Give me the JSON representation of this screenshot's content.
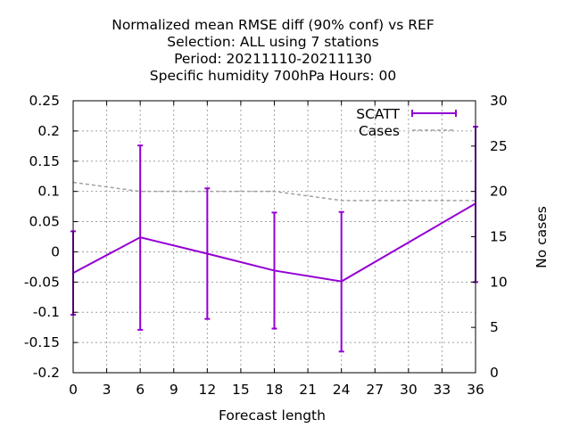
{
  "chart_data": {
    "type": "line",
    "title_lines": [
      "Normalized mean RMSE diff (90% conf) vs REF",
      "Selection: ALL using     7 stations",
      "Period: 20211110-20211130",
      "Specific humidity 700hPa   Hours:  00"
    ],
    "xlabel": "Forecast length",
    "ylabel": "",
    "y2label": "No cases",
    "xlim": [
      0,
      36
    ],
    "ylim": [
      -0.2,
      0.25
    ],
    "y2lim": [
      0,
      30
    ],
    "x_ticks": [
      "0",
      "3",
      "6",
      "9",
      "12",
      "15",
      "18",
      "21",
      "24",
      "27",
      "30",
      "33",
      "36"
    ],
    "y_ticks": [
      "0.25",
      "0.2",
      "0.15",
      "0.1",
      "0.05",
      "0",
      "-0.05",
      "-0.1",
      "-0.15",
      "-0.2"
    ],
    "y2_ticks": [
      "30",
      "25",
      "20",
      "15",
      "10",
      "5",
      "0"
    ],
    "grid": true,
    "legend_position": "top-right",
    "series": [
      {
        "name": "SCATT",
        "color": "#9400d3",
        "style": "line with errorbars",
        "x": [
          0,
          6,
          12,
          18,
          24,
          36
        ],
        "values": [
          -0.035,
          0.024,
          -0.003,
          -0.031,
          -0.049,
          0.08
        ],
        "err_low": [
          -0.104,
          -0.129,
          -0.111,
          -0.127,
          -0.165,
          -0.05
        ],
        "err_high": [
          0.034,
          0.176,
          0.105,
          0.065,
          0.066,
          0.207
        ]
      },
      {
        "name": "Cases",
        "color": "#a0a0a0",
        "style": "dashed",
        "axis": "y2",
        "x": [
          0,
          6,
          12,
          18,
          24,
          36
        ],
        "values": [
          21,
          20,
          20,
          20,
          19,
          19
        ]
      }
    ]
  }
}
